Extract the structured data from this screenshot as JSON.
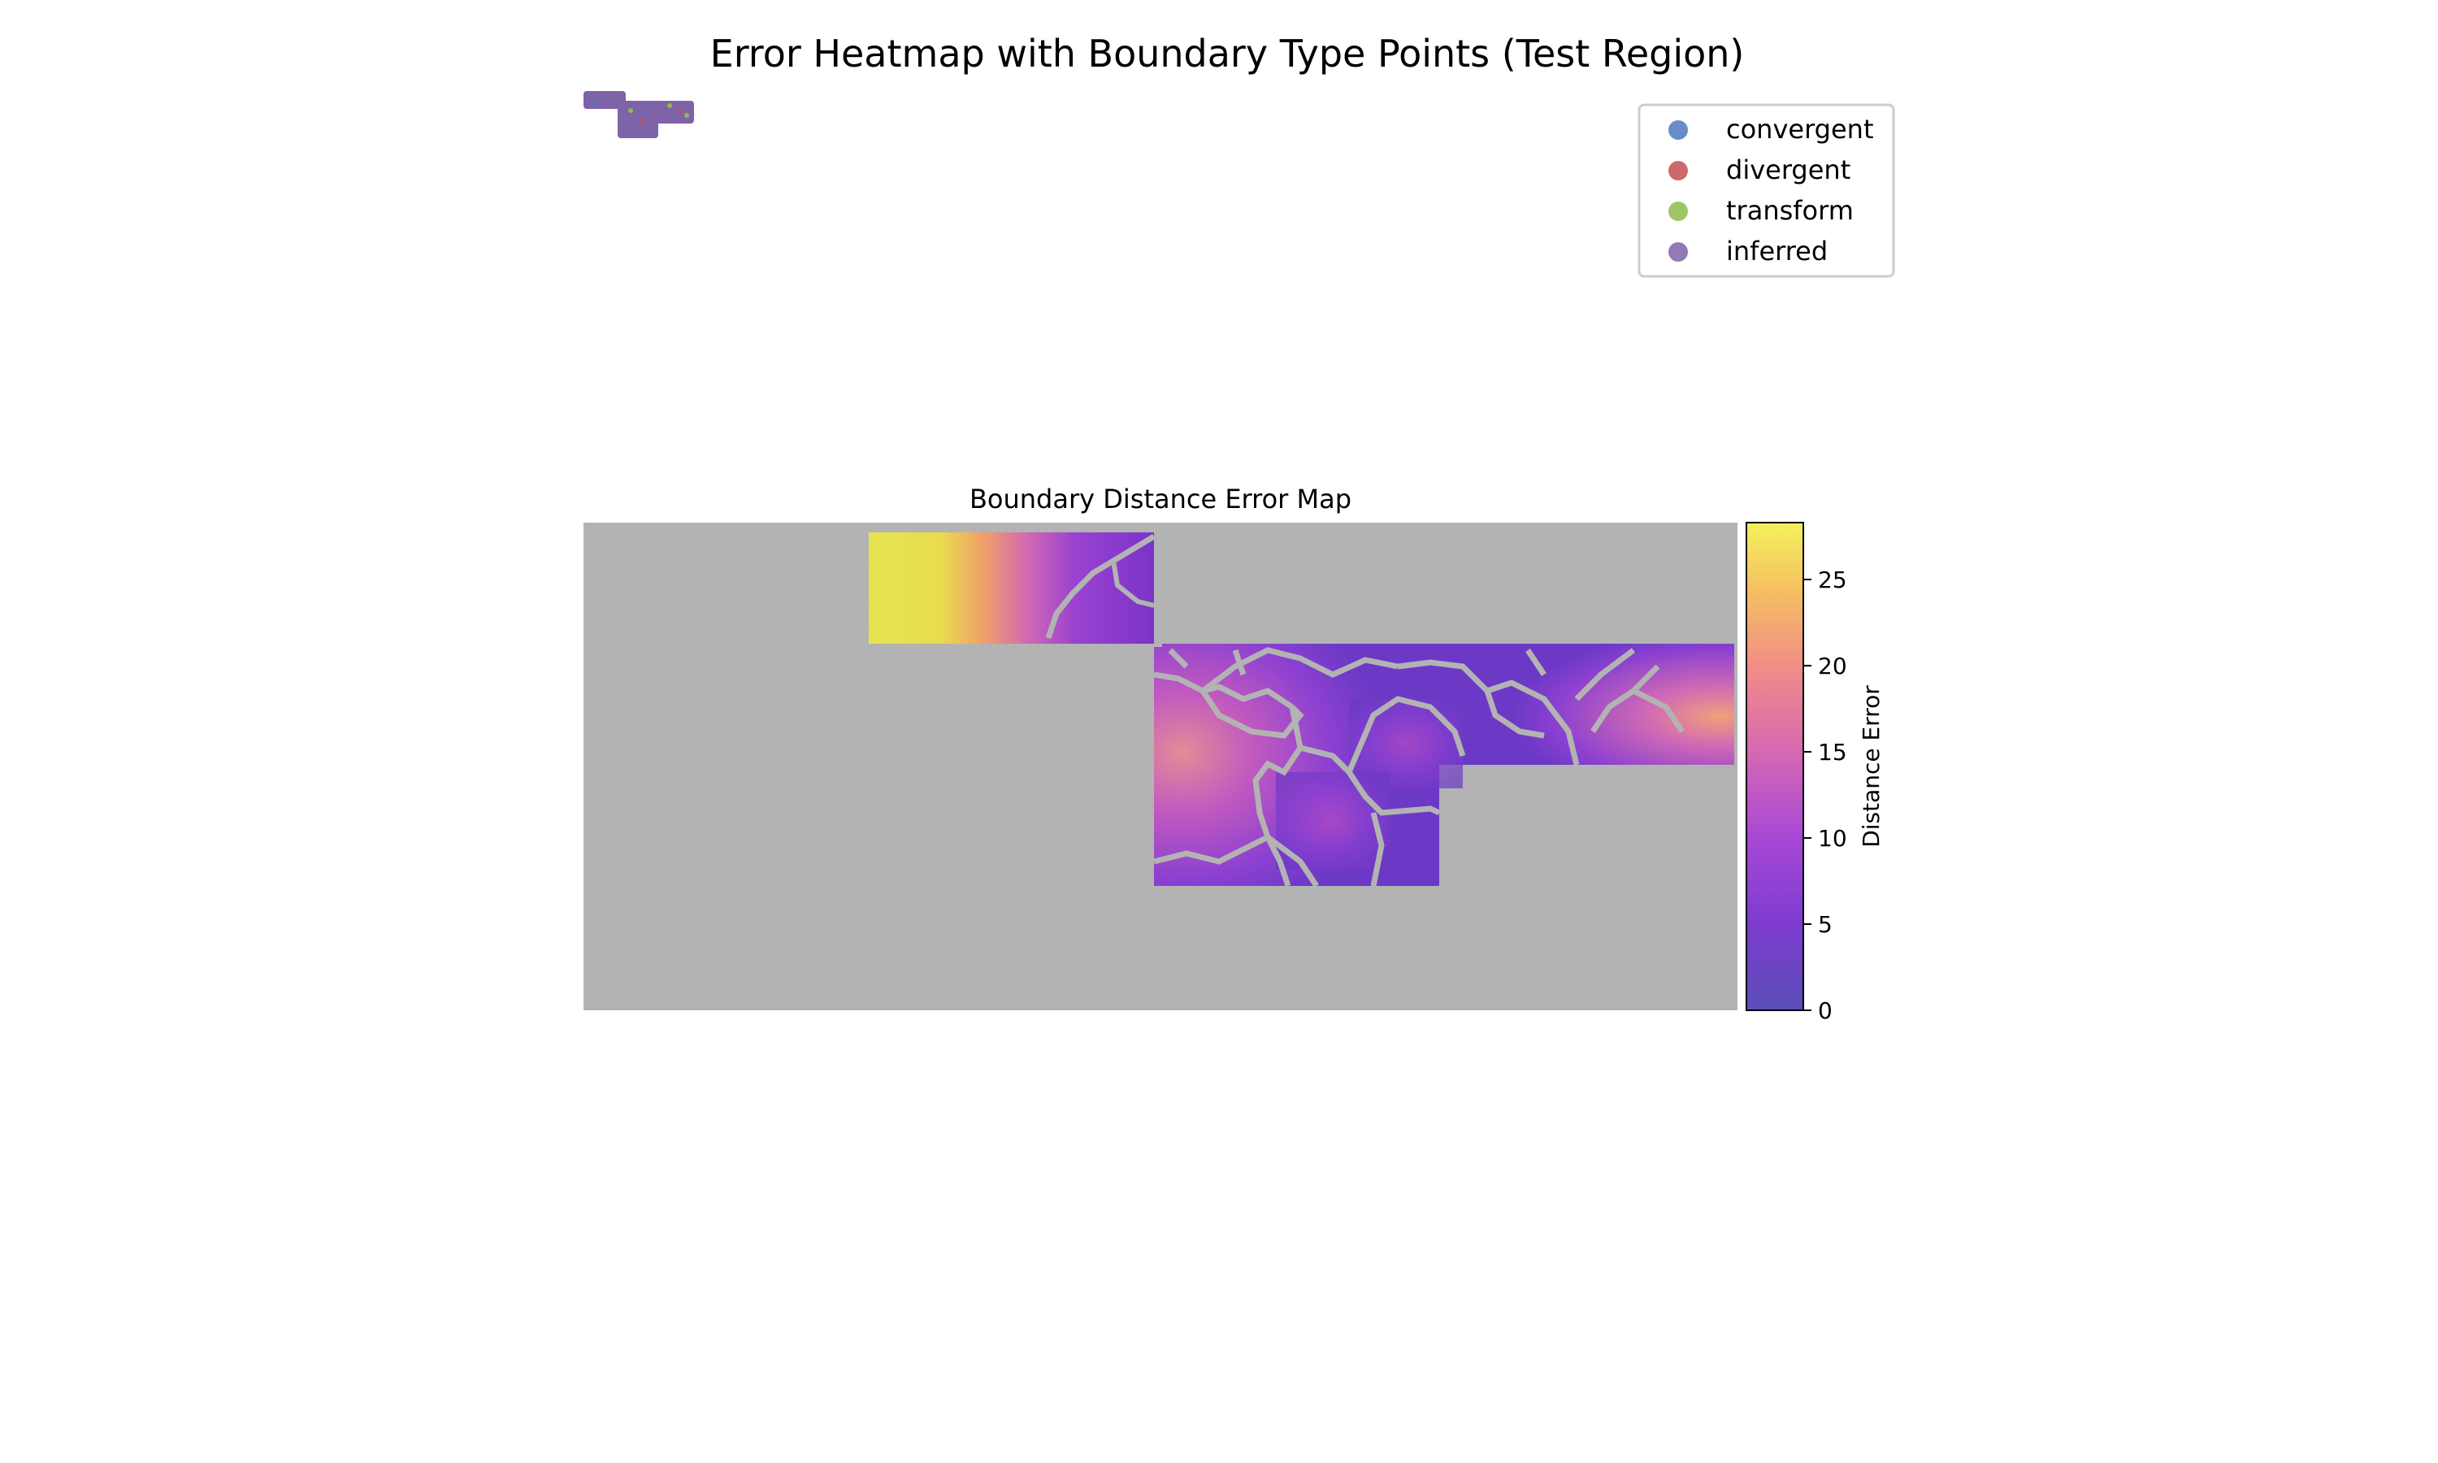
{
  "figure": {
    "title": "Error Heatmap with Boundary Type Points (Test Region)"
  },
  "legend": {
    "placement": "top-right",
    "items": [
      {
        "label": "convergent",
        "color": "#4c78bd"
      },
      {
        "label": "divergent",
        "color": "#c44e52"
      },
      {
        "label": "transform",
        "color": "#8fbb4a"
      },
      {
        "label": "inferred",
        "color": "#7f63a8"
      }
    ]
  },
  "chart_data": [
    {
      "type": "scatter",
      "title": "",
      "xlabel": "",
      "ylabel": "",
      "grid": false,
      "series": [
        {
          "name": "convergent",
          "color": "#4c78bd"
        },
        {
          "name": "divergent",
          "color": "#c44e52"
        },
        {
          "name": "transform",
          "color": "#8fbb4a"
        },
        {
          "name": "inferred",
          "color": "#7f63a8"
        }
      ]
    },
    {
      "type": "heatmap",
      "title": "Boundary Distance Error Map",
      "xlabel": "",
      "ylabel": "",
      "colormap": "plasma",
      "background_color": "#b3b3b3",
      "colorbar": {
        "label": "Distance Error",
        "ticks": [
          "0",
          "5",
          "10",
          "15",
          "20",
          "25"
        ],
        "tick_values": [
          0,
          5,
          10,
          15,
          20,
          25
        ],
        "range": [
          0,
          28.3
        ]
      }
    }
  ]
}
